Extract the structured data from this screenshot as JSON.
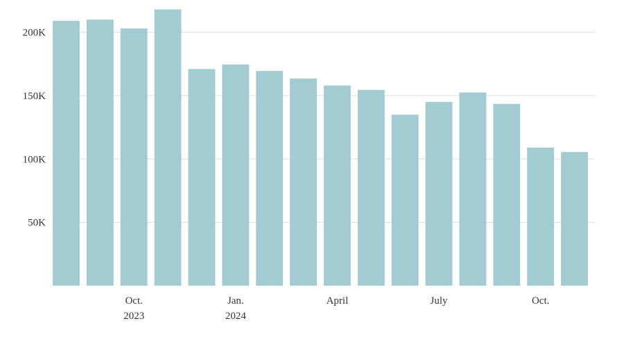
{
  "chart_data": {
    "type": "bar",
    "x": [
      "2023-08",
      "2023-09",
      "2023-10",
      "2023-11",
      "2023-12",
      "2024-01",
      "2024-02",
      "2024-03",
      "2024-04",
      "2024-05",
      "2024-06",
      "2024-07",
      "2024-08",
      "2024-09",
      "2024-10",
      "2024-11"
    ],
    "values": [
      209000,
      210000,
      203000,
      218000,
      171000,
      174500,
      169500,
      163500,
      158000,
      154500,
      135000,
      145000,
      152500,
      143500,
      109000,
      105500
    ],
    "ylim": [
      0,
      220000
    ],
    "yticks": [
      {
        "value": 50000,
        "label": "50K"
      },
      {
        "value": 100000,
        "label": "100K"
      },
      {
        "value": 150000,
        "label": "150K"
      },
      {
        "value": 200000,
        "label": "200K"
      }
    ],
    "xticks": [
      {
        "index": 2,
        "line1": "Oct.",
        "line2": "2023"
      },
      {
        "index": 5,
        "line1": "Jan.",
        "line2": "2024"
      },
      {
        "index": 8,
        "line1": "April",
        "line2": ""
      },
      {
        "index": 11,
        "line1": "July",
        "line2": ""
      },
      {
        "index": 14,
        "line1": "Oct.",
        "line2": ""
      }
    ],
    "grid": true,
    "colors": {
      "bar": "#a2cbd2",
      "grid": "#dddddd",
      "text": "#333333"
    }
  }
}
